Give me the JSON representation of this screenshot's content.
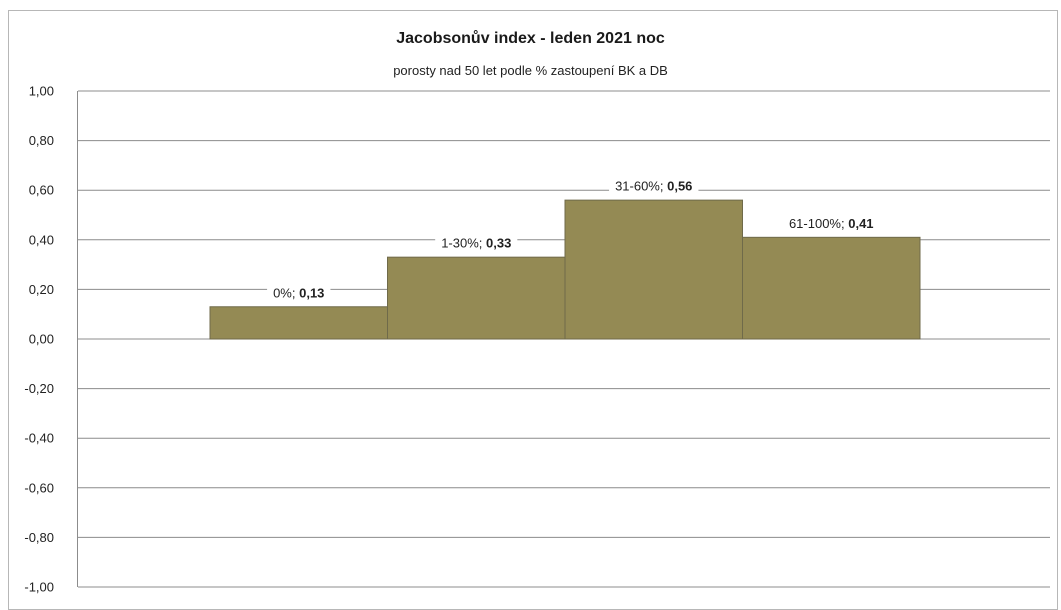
{
  "chart_data": {
    "type": "bar",
    "title": "Jacobsonův index - leden  2021 noc",
    "subtitle": "porosty nad  50 let podle % zastoupení BK a DB",
    "xlabel": "",
    "ylabel": "",
    "categories": [
      "0%",
      "1-30%",
      "31-60%",
      "61-100%"
    ],
    "values": [
      0.13,
      0.33,
      0.56,
      0.41
    ],
    "value_labels": [
      "0,13",
      "0,33",
      "0,56",
      "0,41"
    ],
    "ylim": [
      -1.0,
      1.0
    ],
    "yticks": [
      1.0,
      0.8,
      0.6,
      0.4,
      0.2,
      0.0,
      -0.2,
      -0.4,
      -0.6,
      -0.8,
      -1.0
    ],
    "ytick_labels": [
      "1,00",
      "0,80",
      "0,60",
      "0,40",
      "0,20",
      "0,00",
      "-0,20",
      "-0,40",
      "-0,60",
      "-0,80",
      "-1,00"
    ],
    "grid": true,
    "legend": "none",
    "bar_color": "#948a54"
  }
}
